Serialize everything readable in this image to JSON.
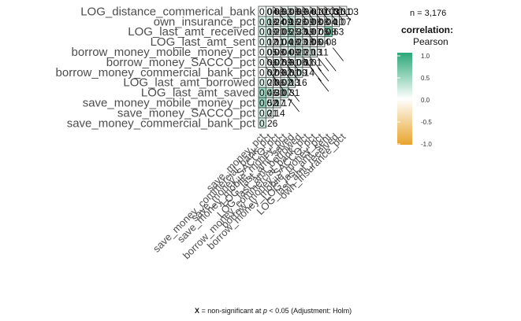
{
  "chart_data": {
    "type": "heatmap",
    "variables": [
      "save_money_pct",
      "save_money_commercial_bank_pct",
      "save_money_SACCO_pct",
      "save_money_mobile_money_pct",
      "LOG_last_amt_saved",
      "LOG_last_amt_borrowed",
      "borrow_money_commercial_bank_pct",
      "borrow_money_SACCO_pct",
      "borrow_money_mobile_money_pct",
      "LOG_last_amt_sent",
      "LOG_last_amt_received",
      "own_insurance_pct",
      "LOG_distance_commerical_bank"
    ],
    "row_labels": [
      "LOG_distance_commerical_bank",
      "own_insurance_pct",
      "LOG_last_amt_received",
      "LOG_last_amt_sent",
      "borrow_money_mobile_money_pct",
      "borrow_money_SACCO_pct",
      "borrow_money_commercial_bank_pct",
      "LOG_last_amt_borrowed",
      "LOG_last_amt_saved",
      "save_money_mobile_money_pct",
      "save_money_SACCO_pct",
      "save_money_commercial_bank_pct"
    ],
    "column_labels": [
      "save_money_pct",
      "save_money_commercial_bank_pct",
      "save_money_SACCO_pct",
      "save_money_mobile_money_pct",
      "LOG_last_amt_saved",
      "LOG_last_amt_borrowed",
      "borrow_money_commercial_bank_pct",
      "borrow_money_SACCO_pct",
      "borrow_money_mobile_money_pct",
      "LOG_last_amt_sent",
      "LOG_last_amt_received",
      "own_insurance_pct"
    ],
    "cells": [
      [
        "0.04",
        "0.06",
        "0.03",
        "0.06",
        "0.09",
        "0.04",
        "0.01",
        "0.01",
        "-0.03",
        "0.01",
        "0.01",
        "0.03"
      ],
      [
        "0.18",
        "0.24",
        "0.09",
        "0.16",
        "0.26",
        "0.09",
        "0.08",
        "0.08",
        "0.04",
        "0.10",
        "0.07",
        ""
      ],
      [
        "0.19",
        "0.20",
        "0.05",
        "0.25",
        "0.33",
        "0.19",
        "0.07",
        "0.05",
        "0.08",
        "0.63",
        "",
        ""
      ],
      [
        "0.12",
        "0.11",
        "0.04",
        "0.18",
        "0.23",
        "0.18",
        "0.06",
        "0.04",
        "0.08",
        "",
        "",
        ""
      ],
      [
        "0.05",
        "0.08",
        "0.04",
        "0.09",
        "0.20",
        "0.21",
        "0.13",
        "0.11",
        "",
        "",
        "",
        ""
      ],
      [
        "0.06",
        "0.02",
        "0.09",
        "0.01",
        "0.06",
        "0.11",
        "0.01",
        "",
        "",
        "",
        "",
        ""
      ],
      [
        "0.02",
        "0.09",
        "0.02",
        "0.01",
        "0.09",
        "0.14",
        "",
        "",
        "",
        "",
        "",
        ""
      ],
      [
        "0.20",
        "0.06",
        "0.02",
        "0.13",
        "0.16",
        "",
        "",
        "",
        "",
        "",
        "",
        ""
      ],
      [
        "0.46",
        "0.30",
        "0.07",
        "0.31",
        "",
        "",
        "",
        "",
        "",
        "",
        "",
        ""
      ],
      [
        "0.52",
        "0.17",
        "0.17",
        "",
        "",
        "",
        "",
        "",
        "",
        "",
        "",
        ""
      ],
      [
        "0.21",
        "0.14",
        "",
        "",
        "",
        "",
        "",
        "",
        "",
        "",
        "",
        ""
      ],
      [
        "0.26",
        "",
        "",
        "",
        "",
        "",
        "",
        "",
        "",
        "",
        "",
        ""
      ]
    ],
    "nonsignificant": [
      [
        0,
        2
      ],
      [
        0,
        3
      ],
      [
        0,
        5
      ],
      [
        0,
        6
      ],
      [
        0,
        7
      ],
      [
        0,
        8
      ],
      [
        0,
        9
      ],
      [
        0,
        10
      ],
      [
        0,
        11
      ],
      [
        2,
        6
      ],
      [
        4,
        10
      ],
      [
        5,
        1
      ],
      [
        5,
        3
      ],
      [
        5,
        4
      ],
      [
        5,
        6
      ],
      [
        5,
        7
      ],
      [
        5,
        8
      ],
      [
        5,
        9
      ],
      [
        6,
        1
      ],
      [
        6,
        3
      ],
      [
        6,
        4
      ],
      [
        6,
        7
      ],
      [
        6,
        8
      ],
      [
        7,
        2
      ],
      [
        7,
        8
      ],
      [
        8,
        4
      ],
      [
        9,
        4
      ]
    ],
    "color_scale": {
      "low": "#e8a42c",
      "mid": "#ffffff",
      "high": "#2ba778",
      "limits": [
        -1.0,
        1.0
      ],
      "ticks": [
        "1.0",
        "0.5",
        "0.0",
        "-0.5",
        "-1.0"
      ]
    },
    "legend_title": "correlation:",
    "legend_subtitle": "Pearson",
    "legend_placement": "right"
  },
  "subtitle_n": "n = 3,176",
  "caption": {
    "prefix": "X",
    "text": " = non-significant at ",
    "p": "p",
    "rest": " < 0.05 (Adjustment: Holm)"
  }
}
